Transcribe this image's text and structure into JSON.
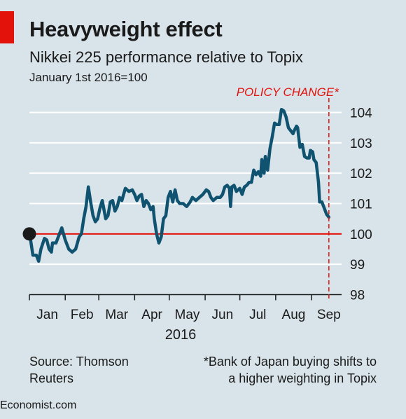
{
  "header": {
    "title": "Heavyweight effect",
    "subtitle": "Nikkei 225 performance relative to Topix",
    "unit": "January 1st 2016=100"
  },
  "footer": {
    "source_line1": "Source: Thomson",
    "source_line2": "Reuters",
    "note_line1": "*Bank of Japan buying shifts to",
    "note_line2": "a higher weighting in Topix",
    "brand": "Economist.com"
  },
  "colors": {
    "background": "#d9e4ea",
    "series": "#0f5370",
    "baseline": "#e3120b",
    "annotation": "#e3120b",
    "grid": "#ffffff"
  },
  "chart_data": {
    "type": "line",
    "title": "Heavyweight effect",
    "subtitle": "Nikkei 225 performance relative to Topix",
    "xlabel": "2016",
    "ylabel": "January 1st 2016=100",
    "x_ticks": [
      "Jan",
      "Feb",
      "Mar",
      "Apr",
      "May",
      "Jun",
      "Jul",
      "Aug",
      "Sep"
    ],
    "y_ticks": [
      98,
      99,
      100,
      101,
      102,
      103,
      104
    ],
    "ylim": [
      98,
      104.4
    ],
    "xlim_days": [
      0,
      270
    ],
    "grid": true,
    "y_axis_position": "right",
    "baseline": 100,
    "annotation": {
      "label": "POLICY CHANGE*",
      "x_day": 259
    },
    "series": [
      {
        "name": "",
        "points": [
          [
            0,
            100
          ],
          [
            1,
            99.8
          ],
          [
            3,
            99.3
          ],
          [
            6,
            99.3
          ],
          [
            8,
            99.1
          ],
          [
            10,
            99.5
          ],
          [
            13,
            99.85
          ],
          [
            15,
            99.8
          ],
          [
            17,
            99.5
          ],
          [
            19,
            99.4
          ],
          [
            20,
            99.7
          ],
          [
            23,
            99.7
          ],
          [
            26,
            100.0
          ],
          [
            28,
            100.2
          ],
          [
            31,
            99.8
          ],
          [
            34,
            99.5
          ],
          [
            37,
            99.4
          ],
          [
            40,
            99.5
          ],
          [
            43,
            99.9
          ],
          [
            45,
            100.0
          ],
          [
            47,
            100.5
          ],
          [
            49,
            100.9
          ],
          [
            51,
            101.55
          ],
          [
            53,
            101.05
          ],
          [
            55,
            100.6
          ],
          [
            57,
            100.4
          ],
          [
            59,
            100.5
          ],
          [
            61,
            100.85
          ],
          [
            63,
            101.1
          ],
          [
            64,
            100.9
          ],
          [
            66,
            100.5
          ],
          [
            68,
            100.6
          ],
          [
            70,
            101.05
          ],
          [
            72,
            101.1
          ],
          [
            74,
            100.75
          ],
          [
            76,
            100.9
          ],
          [
            78,
            101.2
          ],
          [
            80,
            101.1
          ],
          [
            83,
            101.5
          ],
          [
            86,
            101.4
          ],
          [
            89,
            101.45
          ],
          [
            91,
            101.3
          ],
          [
            93,
            101.1
          ],
          [
            95,
            101.25
          ],
          [
            97,
            101.3
          ],
          [
            99,
            100.9
          ],
          [
            101,
            101.1
          ],
          [
            103,
            101.0
          ],
          [
            105,
            100.8
          ],
          [
            107,
            100.9
          ],
          [
            108,
            100.5
          ],
          [
            110,
            100.0
          ],
          [
            112,
            99.7
          ],
          [
            114,
            99.9
          ],
          [
            116,
            100.5
          ],
          [
            118,
            100.6
          ],
          [
            120,
            101.2
          ],
          [
            122,
            101.4
          ],
          [
            124,
            101.05
          ],
          [
            126,
            101.45
          ],
          [
            128,
            101.1
          ],
          [
            130,
            101.0
          ],
          [
            133,
            101.0
          ],
          [
            136,
            100.9
          ],
          [
            139,
            101.05
          ],
          [
            141,
            101.2
          ],
          [
            144,
            101.1
          ],
          [
            147,
            101.2
          ],
          [
            150,
            101.3
          ],
          [
            153,
            101.45
          ],
          [
            155,
            101.4
          ],
          [
            157,
            101.2
          ],
          [
            159,
            101.1
          ],
          [
            162,
            101.2
          ],
          [
            165,
            101.2
          ],
          [
            167,
            101.3
          ],
          [
            169,
            101.55
          ],
          [
            171,
            101.6
          ],
          [
            173,
            101.5
          ],
          [
            174,
            100.9
          ],
          [
            175,
            101.55
          ],
          [
            177,
            101.6
          ],
          [
            179,
            101.4
          ],
          [
            182,
            101.5
          ],
          [
            184,
            101.3
          ],
          [
            186,
            101.55
          ],
          [
            188,
            101.6
          ],
          [
            190,
            101.7
          ],
          [
            192,
            101.7
          ],
          [
            194,
            102.1
          ],
          [
            196,
            101.95
          ],
          [
            198,
            102.05
          ],
          [
            200,
            101.9
          ],
          [
            201,
            102.45
          ],
          [
            203,
            102.0
          ],
          [
            204,
            102.55
          ],
          [
            206,
            102.1
          ],
          [
            208,
            102.8
          ],
          [
            210,
            103.2
          ],
          [
            212,
            103.65
          ],
          [
            214,
            103.6
          ],
          [
            216,
            103.6
          ],
          [
            218,
            104.1
          ],
          [
            220,
            104.05
          ],
          [
            222,
            103.85
          ],
          [
            224,
            103.5
          ],
          [
            226,
            103.4
          ],
          [
            228,
            103.3
          ],
          [
            229,
            103.4
          ],
          [
            231,
            103.55
          ],
          [
            232,
            103.5
          ],
          [
            234,
            102.85
          ],
          [
            236,
            102.95
          ],
          [
            238,
            102.55
          ],
          [
            240,
            102.5
          ],
          [
            242,
            102.5
          ],
          [
            243,
            102.75
          ],
          [
            245,
            102.7
          ],
          [
            246,
            102.45
          ],
          [
            248,
            102.35
          ],
          [
            250,
            101.7
          ],
          [
            251,
            101.05
          ],
          [
            253,
            101.05
          ],
          [
            255,
            100.85
          ],
          [
            257,
            100.65
          ],
          [
            259,
            100.55
          ]
        ]
      }
    ]
  }
}
